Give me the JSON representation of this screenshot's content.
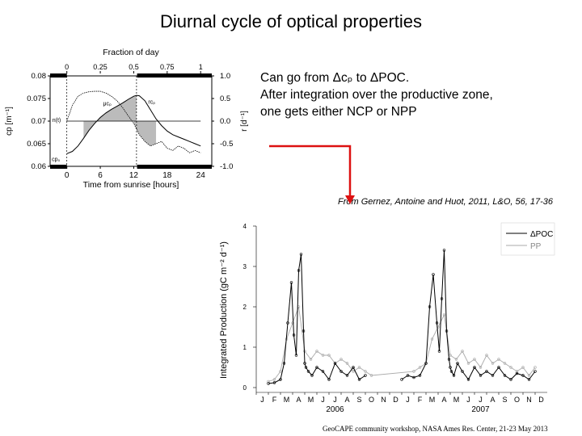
{
  "slide": {
    "title": "Diurnal cycle of optical properties",
    "note_lines": [
      "Can go from Δcₚ to ΔPOC.",
      "After integration over the productive zone,",
      "one gets either NCP or NPP"
    ],
    "citation": "From Gernez, Antoine and Huot, 2011, L&O, 56, 17-36",
    "footer": "GeoCAPE community workshop, NASA Ames Res. Center, 21-23 May 2013",
    "arrow_color": "#dd1111"
  },
  "chart_data": [
    {
      "type": "line",
      "xlabel": "Time from sunrise [hours]",
      "x_top_label": "Fraction of day",
      "ylabel_left": "cp [m⁻¹]",
      "ylabel_right": "r [d⁻¹]",
      "xlim": [
        -3,
        26
      ],
      "ylim_left": [
        0.06,
        0.08
      ],
      "ylim_right": [
        -1.0,
        1.0
      ],
      "x_ticks": [
        "0",
        "6",
        "12",
        "18",
        "24"
      ],
      "x_top_ticks": [
        "0",
        "0.25",
        "0.5",
        "0.75",
        "1"
      ],
      "y_left_ticks": [
        "0.06",
        "0.065",
        "0.07",
        "0.075",
        "0.08"
      ],
      "y_right_ticks": [
        "-1.0",
        "-0.5",
        "0.0",
        "0.5",
        "1.0"
      ],
      "annotations": [
        "μcₚ",
        "rcₚ",
        "n(t)",
        "cp₀"
      ],
      "series": [
        {
          "x": [
            0,
            1,
            2,
            3,
            4,
            5,
            6,
            7,
            8,
            9,
            10,
            11,
            12,
            12.5,
            13,
            14,
            15,
            16,
            17,
            18,
            19,
            20,
            21,
            22,
            23,
            24
          ],
          "values": [
            0.0628,
            0.0633,
            0.0645,
            0.0662,
            0.068,
            0.0695,
            0.0708,
            0.0718,
            0.0726,
            0.0733,
            0.074,
            0.0748,
            0.0755,
            0.0757,
            0.0756,
            0.0745,
            0.0725,
            0.0705,
            0.069,
            0.0678,
            0.067,
            0.0665,
            0.066,
            0.0655,
            0.065,
            0.0645
          ]
        },
        {
          "x": [
            0,
            1,
            2,
            3,
            4,
            5,
            6,
            7,
            8,
            9,
            10,
            11,
            12,
            13,
            14,
            15,
            16,
            17,
            18,
            19,
            20,
            21,
            22,
            23,
            24
          ],
          "values": [
            0.0,
            0.35,
            0.55,
            0.62,
            0.65,
            0.66,
            0.66,
            0.62,
            0.55,
            0.45,
            0.3,
            0.12,
            -0.05,
            -0.3,
            -0.45,
            -0.55,
            -0.5,
            -0.45,
            -0.6,
            -0.65,
            -0.55,
            -0.6,
            -0.7,
            -0.65,
            -0.7
          ]
        }
      ]
    },
    {
      "type": "line",
      "xlabel": "",
      "ylabel": "Integrated Production (gC m⁻² d⁻¹)",
      "ylim": [
        0,
        4
      ],
      "xlim": [
        0,
        24
      ],
      "y_ticks": [
        "0",
        "1",
        "2",
        "3",
        "4"
      ],
      "month_ticks": [
        "J",
        "F",
        "M",
        "A",
        "M",
        "J",
        "J",
        "A",
        "S",
        "O",
        "N",
        "D",
        "J",
        "F",
        "M",
        "A",
        "M",
        "J",
        "J",
        "A",
        "S",
        "O",
        "N",
        "D"
      ],
      "year_labels": [
        "2006",
        "2007"
      ],
      "series": [
        {
          "name": "ΔPOC",
          "color": "#000000",
          "x": [
            1.0,
            1.5,
            2.0,
            2.3,
            2.6,
            2.9,
            3.1,
            3.3,
            3.5,
            3.7,
            3.9,
            4.0,
            4.1,
            4.3,
            4.6,
            5.0,
            5.5,
            6.0,
            6.5,
            7.0,
            7.5,
            8.0,
            8.5,
            9.0,
            9.5,
            10.0,
            10.5,
            11.0,
            11.5,
            12.0,
            12.5,
            13.0,
            13.5,
            14.0,
            14.3,
            14.6,
            14.9,
            15.1,
            15.3,
            15.5,
            15.7,
            15.9,
            16.0,
            16.1,
            16.3,
            16.6,
            17.0,
            17.5,
            18.0,
            18.5,
            19.0,
            19.5,
            20.0,
            20.5,
            21.0,
            21.5,
            22.0,
            22.5,
            23.0
          ],
          "values": [
            0.1,
            0.12,
            0.2,
            0.6,
            1.6,
            2.6,
            1.3,
            0.8,
            2.9,
            3.3,
            1.4,
            0.6,
            0.5,
            0.4,
            0.3,
            0.5,
            0.4,
            0.2,
            0.6,
            0.4,
            0.3,
            0.5,
            0.2,
            0.3,
            null,
            null,
            null,
            null,
            null,
            0.2,
            0.3,
            0.25,
            0.3,
            0.6,
            2.0,
            2.8,
            1.6,
            0.9,
            2.2,
            3.4,
            1.4,
            0.7,
            0.5,
            0.4,
            0.3,
            0.6,
            0.4,
            0.2,
            0.5,
            0.3,
            0.4,
            0.3,
            0.5,
            0.3,
            0.2,
            0.35,
            0.3,
            0.2,
            0.4
          ]
        },
        {
          "name": "PP",
          "color": "#aaaaaa",
          "x": [
            1.0,
            1.5,
            2.0,
            2.5,
            3.0,
            3.5,
            4.0,
            4.5,
            5.0,
            5.5,
            6.0,
            6.5,
            7.0,
            7.5,
            8.0,
            8.5,
            9.0,
            9.5,
            13.0,
            13.5,
            14.0,
            14.5,
            15.0,
            15.5,
            16.0,
            16.5,
            17.0,
            17.5,
            18.0,
            18.5,
            19.0,
            19.5,
            20.0,
            20.5,
            21.0,
            21.5,
            22.0,
            22.5,
            23.0
          ],
          "values": [
            0.15,
            0.2,
            0.4,
            1.2,
            1.6,
            2.0,
            0.9,
            0.7,
            0.9,
            0.8,
            0.8,
            0.6,
            0.7,
            0.6,
            0.4,
            0.5,
            0.4,
            0.3,
            0.4,
            0.5,
            0.6,
            1.2,
            1.5,
            1.8,
            0.8,
            0.7,
            0.9,
            0.6,
            0.7,
            0.5,
            0.8,
            0.6,
            0.7,
            0.6,
            0.5,
            0.4,
            0.5,
            0.3,
            0.5
          ]
        }
      ]
    }
  ]
}
